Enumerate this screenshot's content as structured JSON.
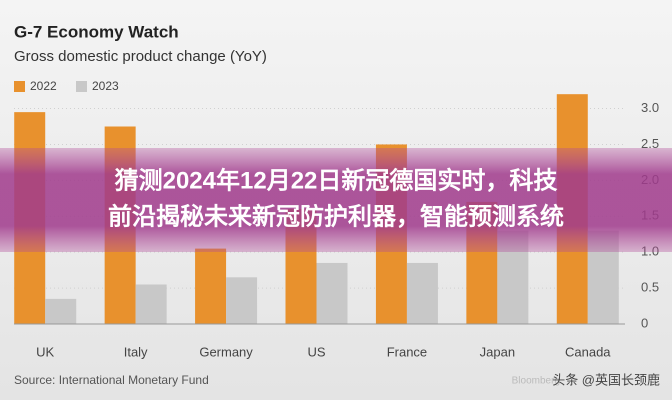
{
  "chart_data": {
    "type": "bar",
    "title": "G-7 Economy Watch",
    "subtitle": "Gross domestic product change (YoY)",
    "source": "Source: International Monetary Fund",
    "watermark": "Bloomberg",
    "credit": "头条 @英国长颈鹿",
    "banner": [
      "猜测2024年12月22日新冠德国实时，科技",
      "前沿揭秘未来新冠防护利器，智能预测系统"
    ],
    "categories": [
      "UK",
      "Italy",
      "Germany",
      "US",
      "France",
      "Japan",
      "Canada"
    ],
    "series": [
      {
        "name": "2022",
        "color": "#e8912d",
        "values": [
          2.95,
          2.75,
          1.05,
          1.6,
          2.5,
          1.7,
          3.2
        ]
      },
      {
        "name": "2023",
        "color": "#c8c8c8",
        "values": [
          0.35,
          0.55,
          0.65,
          0.85,
          0.85,
          1.3,
          1.3
        ]
      }
    ],
    "ylim": [
      0,
      3.3
    ],
    "yticks": [
      0,
      0.5,
      {
        "value": 1,
        "label": "1.0"
      },
      1.5,
      {
        "value": 2,
        "label": "2.0"
      },
      2.5,
      {
        "value": 3,
        "label": "3.0"
      }
    ],
    "grid": true
  }
}
